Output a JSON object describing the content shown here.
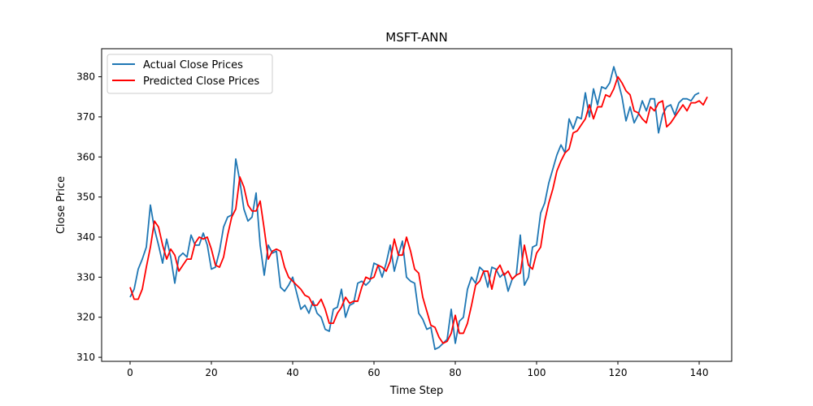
{
  "chart_data": {
    "type": "line",
    "title": "MSFT-ANN",
    "xlabel": "Time Step",
    "ylabel": "Close Price",
    "xlim": [
      -7,
      148
    ],
    "ylim": [
      309,
      387
    ],
    "xticks": [
      0,
      20,
      40,
      60,
      80,
      100,
      120,
      140
    ],
    "yticks": [
      310,
      320,
      330,
      340,
      350,
      360,
      370,
      380
    ],
    "grid": false,
    "legend": "top-left",
    "series": [
      {
        "name": "Actual Close Prices",
        "color": "#1f77b4",
        "values": [
          325.0,
          327.0,
          332.0,
          334.5,
          337.5,
          348.0,
          342.0,
          338.0,
          333.5,
          339.5,
          335.0,
          328.5,
          335.0,
          336.0,
          335.0,
          340.5,
          338.0,
          338.0,
          341.0,
          338.0,
          332.0,
          332.5,
          336.5,
          342.5,
          345.0,
          345.5,
          359.5,
          354.0,
          347.0,
          344.0,
          345.0,
          351.0,
          338.0,
          330.5,
          338.0,
          336.0,
          336.5,
          327.5,
          326.5,
          328.0,
          330.0,
          326.0,
          322.0,
          323.0,
          321.0,
          324.0,
          321.0,
          320.0,
          317.0,
          316.5,
          322.0,
          322.5,
          327.0,
          320.0,
          323.0,
          323.5,
          328.5,
          329.0,
          328.0,
          329.0,
          333.5,
          333.0,
          330.0,
          333.5,
          338.0,
          331.5,
          335.5,
          339.0,
          330.0,
          329.0,
          328.5,
          321.0,
          319.5,
          317.0,
          317.5,
          312.0,
          312.5,
          313.5,
          314.5,
          322.0,
          313.5,
          319.0,
          320.0,
          327.0,
          330.0,
          328.5,
          332.5,
          331.5,
          327.5,
          332.5,
          332.0,
          330.0,
          331.0,
          326.5,
          329.5,
          330.5,
          340.5,
          328.0,
          330.0,
          337.5,
          338.0,
          346.0,
          348.5,
          353.5,
          357.0,
          360.5,
          363.0,
          361.0,
          369.5,
          367.0,
          370.0,
          369.5,
          376.0,
          370.0,
          377.0,
          373.0,
          377.5,
          377.0,
          378.5,
          382.5,
          379.0,
          375.0,
          369.0,
          372.5,
          368.5,
          370.5,
          374.0,
          371.5,
          374.5,
          374.5,
          366.0,
          370.5,
          372.5,
          373.0,
          370.5,
          373.5,
          374.5,
          374.5,
          374.0,
          375.5,
          376.0
        ]
      },
      {
        "name": "Predicted Close Prices",
        "color": "#ff0000",
        "values": [
          327.5,
          324.5,
          324.5,
          327.0,
          332.5,
          337.5,
          344.0,
          342.5,
          338.0,
          334.5,
          337.0,
          335.5,
          331.5,
          333.0,
          334.5,
          334.5,
          338.5,
          340.0,
          339.5,
          340.0,
          337.0,
          333.0,
          332.5,
          335.0,
          340.5,
          345.0,
          347.0,
          355.0,
          352.5,
          348.0,
          346.5,
          346.5,
          349.0,
          342.0,
          334.5,
          336.5,
          337.0,
          336.5,
          332.5,
          330.0,
          329.0,
          328.0,
          327.0,
          325.5,
          325.0,
          323.0,
          323.0,
          324.5,
          322.0,
          318.5,
          318.5,
          321.0,
          322.5,
          325.0,
          323.5,
          324.0,
          324.0,
          327.5,
          330.0,
          329.5,
          330.0,
          333.0,
          332.5,
          331.5,
          334.0,
          339.5,
          335.5,
          335.5,
          340.0,
          336.5,
          332.0,
          331.0,
          325.0,
          321.5,
          318.0,
          317.5,
          315.0,
          313.5,
          314.0,
          316.0,
          320.5,
          316.0,
          316.0,
          318.5,
          323.0,
          328.0,
          329.0,
          331.5,
          331.5,
          327.0,
          331.5,
          333.0,
          330.5,
          331.5,
          329.5,
          330.5,
          331.0,
          338.0,
          333.0,
          332.0,
          336.0,
          337.5,
          344.0,
          348.5,
          352.0,
          356.5,
          359.0,
          361.0,
          362.0,
          366.0,
          366.5,
          368.0,
          369.5,
          373.0,
          369.5,
          372.5,
          372.5,
          375.5,
          375.0,
          377.0,
          380.0,
          378.5,
          376.5,
          375.5,
          371.5,
          371.0,
          369.5,
          368.5,
          372.5,
          371.5,
          373.5,
          374.0,
          367.5,
          368.5,
          370.0,
          371.5,
          373.0,
          371.5,
          373.5,
          373.5,
          374.0,
          373.0,
          375.0
        ]
      }
    ]
  }
}
